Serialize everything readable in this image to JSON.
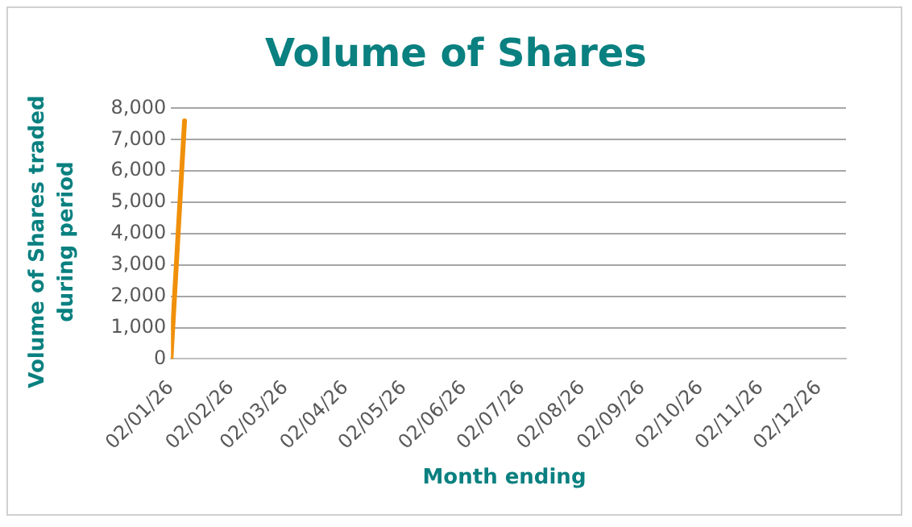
{
  "chart_data": {
    "type": "line",
    "title": "Volume of Shares",
    "xlabel": "Month ending",
    "ylabel": "Volume of Shares traded during period",
    "x": [
      "2026-01-02",
      "2026-01-09"
    ],
    "series": [
      {
        "color": "#f0900a",
        "values": [
          0,
          7600
        ]
      }
    ],
    "xlim": [
      "2026-01-02",
      "2026-12-16"
    ],
    "xticks": [
      {
        "value": "2026-01-02",
        "label": "02/01/26"
      },
      {
        "value": "2026-02-02",
        "label": "02/02/26"
      },
      {
        "value": "2026-03-02",
        "label": "02/03/26"
      },
      {
        "value": "2026-04-02",
        "label": "02/04/26"
      },
      {
        "value": "2026-05-02",
        "label": "02/05/26"
      },
      {
        "value": "2026-06-02",
        "label": "02/06/26"
      },
      {
        "value": "2026-07-02",
        "label": "02/07/26"
      },
      {
        "value": "2026-08-02",
        "label": "02/08/26"
      },
      {
        "value": "2026-09-02",
        "label": "02/09/26"
      },
      {
        "value": "2026-10-02",
        "label": "02/10/26"
      },
      {
        "value": "2026-11-02",
        "label": "02/11/26"
      },
      {
        "value": "2026-12-02",
        "label": "02/12/26"
      }
    ],
    "ylim": [
      0,
      8000
    ],
    "yticks": [
      {
        "value": 0,
        "label": "0"
      },
      {
        "value": 1000,
        "label": "1,000"
      },
      {
        "value": 2000,
        "label": "2,000"
      },
      {
        "value": 3000,
        "label": "3,000"
      },
      {
        "value": 4000,
        "label": "4,000"
      },
      {
        "value": 5000,
        "label": "5,000"
      },
      {
        "value": 6000,
        "label": "6,000"
      },
      {
        "value": 7000,
        "label": "7,000"
      },
      {
        "value": 8000,
        "label": "8,000"
      }
    ],
    "grid": "y",
    "legend": false,
    "marker": "none",
    "line_style": "solid"
  }
}
